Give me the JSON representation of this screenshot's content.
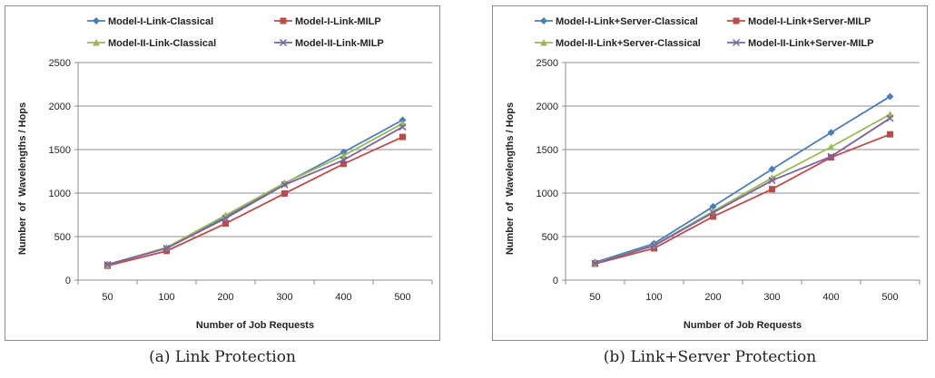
{
  "chart_data": [
    {
      "type": "line",
      "caption": "(a) Link Protection",
      "xlabel": "Number of Job Requests",
      "ylabel": "Number  of  Wavelengths / Hops",
      "categories": [
        "50",
        "100",
        "200",
        "300",
        "400",
        "500"
      ],
      "ylim": [
        0,
        2500
      ],
      "yticks": [
        0,
        500,
        1000,
        1500,
        2000,
        2500
      ],
      "grid": "horizontal",
      "legend_position": "top",
      "series": [
        {
          "name": "Model-I-Link-Classical",
          "color": "#4a7ebb",
          "marker": "diamond",
          "values": [
            180,
            370,
            730,
            1110,
            1470,
            1840
          ]
        },
        {
          "name": "Model-I-Link-MILP",
          "color": "#be4b48",
          "marker": "square",
          "values": [
            165,
            335,
            650,
            995,
            1335,
            1645
          ]
        },
        {
          "name": "Model-II-Link-Classical",
          "color": "#98b954",
          "marker": "triangle",
          "values": [
            175,
            375,
            745,
            1115,
            1430,
            1800
          ]
        },
        {
          "name": "Model-II-Link-MILP",
          "color": "#7d60a0",
          "marker": "x",
          "values": [
            178,
            365,
            710,
            1095,
            1380,
            1760
          ]
        }
      ]
    },
    {
      "type": "line",
      "caption": "(b) Link+Server Protection",
      "xlabel": "Number of Job Requests",
      "ylabel": "Number  of  Wavelengths / Hops",
      "categories": [
        "50",
        "100",
        "200",
        "300",
        "400",
        "500"
      ],
      "ylim": [
        0,
        2500
      ],
      "yticks": [
        0,
        500,
        1000,
        1500,
        2000,
        2500
      ],
      "grid": "horizontal",
      "legend_position": "top",
      "series": [
        {
          "name": "Model-I-Link+Server-Classical",
          "color": "#4a7ebb",
          "marker": "diamond",
          "values": [
            205,
            420,
            845,
            1275,
            1695,
            2110
          ]
        },
        {
          "name": "Model-I-Link+Server-MILP",
          "color": "#be4b48",
          "marker": "square",
          "values": [
            188,
            365,
            730,
            1045,
            1410,
            1675
          ]
        },
        {
          "name": "Model-II-Link+Server-Classical",
          "color": "#98b954",
          "marker": "triangle",
          "values": [
            195,
            400,
            790,
            1175,
            1530,
            1905
          ]
        },
        {
          "name": "Model-II-Link+Server-MILP",
          "color": "#7d60a0",
          "marker": "x",
          "values": [
            192,
            395,
            775,
            1145,
            1420,
            1860
          ]
        }
      ]
    }
  ]
}
